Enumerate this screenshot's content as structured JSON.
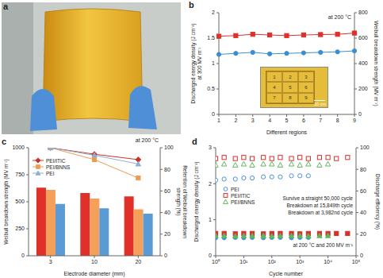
{
  "photo": {
    "panel_label": "a"
  },
  "chart_data": [
    {
      "panel_label": "b",
      "type": "line",
      "annotation": "at 200 °C",
      "xlabel": "Different regions",
      "ylabel": [
        "Discharged energy density (J cm⁻³)",
        "at 300 MV m⁻¹"
      ],
      "y2label": [
        "Weibull breakdown strength (MV m⁻¹)"
      ],
      "categories": [
        "1",
        "2",
        "3",
        "4",
        "5",
        "6",
        "7",
        "8",
        "9"
      ],
      "ylim": [
        0,
        2
      ],
      "yticks": [
        0,
        0.5,
        1,
        1.5,
        2
      ],
      "y2lim": [
        0,
        800
      ],
      "y2ticks": [
        0,
        200,
        400,
        600,
        800
      ],
      "series": [
        {
          "color": "#3a8fd4",
          "marker": "circle",
          "values": [
            1.18,
            1.2,
            1.22,
            1.19,
            1.2,
            1.21,
            1.22,
            1.23,
            1.25
          ]
        },
        {
          "color": "#e0302a",
          "marker": "square",
          "axis": "y2",
          "values": [
            615,
            620,
            630,
            625,
            620,
            625,
            628,
            630,
            640
          ]
        }
      ],
      "inset": {
        "labels": [
          "1",
          "2",
          "3",
          "4",
          "5",
          "6",
          "7",
          "8",
          "9"
        ],
        "scale_bar": "10 cm"
      }
    },
    {
      "panel_label": "c",
      "type": "bar",
      "annotation": "at 200 °C",
      "xlabel": "Electrode diameter (mm)",
      "ylabel": [
        "Weibull breakdown strength (MV m⁻¹)"
      ],
      "y2label": [
        "Retention of Weibull breakdown",
        "strength (%)"
      ],
      "categories": [
        "3",
        "10",
        "20"
      ],
      "ylim": [
        0,
        1000
      ],
      "yticks": [
        0,
        250,
        500,
        750,
        1000
      ],
      "y2lim": [
        0,
        100
      ],
      "y2ticks": [
        0,
        20,
        40,
        60,
        80,
        100
      ],
      "legend": "upper left",
      "series": [
        {
          "name": "PEI/ITIC",
          "type": "bar",
          "color": "#e0302a",
          "values": [
            630,
            580,
            550
          ]
        },
        {
          "name": "PEI/BNNS",
          "type": "bar",
          "color": "#f5a05a",
          "values": [
            610,
            530,
            430
          ]
        },
        {
          "name": "PEI",
          "type": "bar",
          "color": "#5b9bd5",
          "values": [
            480,
            440,
            390
          ]
        },
        {
          "name": "PEI/ITIC",
          "type": "line",
          "axis": "y2",
          "color": "#d0302a",
          "marker": "diamond",
          "values": [
            100,
            94,
            89
          ]
        },
        {
          "name": "PEI/BNNS",
          "type": "line",
          "axis": "y2",
          "color": "#f09a50",
          "marker": "square",
          "values": [
            100,
            89,
            72
          ]
        },
        {
          "name": "PEI",
          "type": "line",
          "axis": "y2",
          "color": "#8fb0d0",
          "marker": "triangle",
          "values": [
            100,
            93,
            85
          ]
        }
      ]
    },
    {
      "panel_label": "d",
      "type": "scatter",
      "log": "x",
      "xlabel": "Cycle number",
      "ylabel": [
        "Discharged energy density (J cm⁻³)"
      ],
      "y2label": [
        "Discharge efficiency (%)"
      ],
      "x": [
        1,
        2,
        5,
        10,
        20,
        50,
        100,
        200,
        500,
        1000,
        2000,
        5000,
        10000,
        20000,
        50000
      ],
      "xlim": [
        1,
        100000
      ],
      "xticks": [
        {
          "value": 1,
          "label": "10⁰"
        },
        {
          "value": 10,
          "label": "10¹"
        },
        {
          "value": 100,
          "label": "10²"
        },
        {
          "value": 1000,
          "label": "10³"
        },
        {
          "value": 10000,
          "label": "10⁴"
        },
        {
          "value": 100000,
          "label": "10⁵"
        }
      ],
      "ylim": [
        0,
        3
      ],
      "yticks": [
        0,
        1,
        2,
        3
      ],
      "y2lim": [
        0,
        100
      ],
      "y2ticks": [
        0,
        20,
        40,
        60,
        80,
        100
      ],
      "legend": "upper left",
      "annotations": [
        "Survive a straight 50,000 cycle",
        "Breakdown at 15,849th cycle",
        "Breakdown at 3,982nd cycle"
      ],
      "annotation": "at 200 °C and 200 MV m⁻¹",
      "series": [
        {
          "name": "PEI",
          "axis": "y2",
          "color": "#4a90d9",
          "marker": "open circle",
          "values": [
            70,
            71,
            71,
            72,
            72,
            73,
            73,
            73,
            74,
            74,
            74,
            null,
            null,
            null,
            null
          ]
        },
        {
          "name": "PEI/ITIC",
          "axis": "y2",
          "color": "#d9302a",
          "marker": "open square",
          "values": [
            90,
            91,
            90,
            91,
            90,
            91,
            90,
            91,
            90,
            91,
            90,
            91,
            91,
            90,
            91
          ]
        },
        {
          "name": "PEI/BNNS",
          "axis": "y2",
          "color": "#5cb85c",
          "marker": "open triangle",
          "values": [
            84,
            85,
            84,
            85,
            84,
            85,
            85,
            84,
            85,
            84,
            85,
            84,
            85,
            null,
            null
          ]
        },
        {
          "name": "PEI",
          "color": "#4a90d9",
          "marker": "circle",
          "values": [
            0.5,
            0.5,
            0.51,
            0.5,
            0.51,
            0.5,
            0.51,
            0.51,
            0.5,
            0.51,
            0.51,
            null,
            null,
            null,
            null
          ]
        },
        {
          "name": "PEI/ITIC",
          "color": "#d9302a",
          "marker": "square",
          "values": [
            0.62,
            0.62,
            0.61,
            0.62,
            0.62,
            0.61,
            0.62,
            0.62,
            0.62,
            0.61,
            0.62,
            0.62,
            0.62,
            0.62,
            0.62
          ]
        },
        {
          "name": "PEI/BNNS",
          "color": "#5cb85c",
          "marker": "triangle",
          "values": [
            0.56,
            0.56,
            0.55,
            0.56,
            0.56,
            0.56,
            0.55,
            0.56,
            0.56,
            0.56,
            0.55,
            0.56,
            0.56,
            null,
            null
          ]
        }
      ]
    }
  ]
}
